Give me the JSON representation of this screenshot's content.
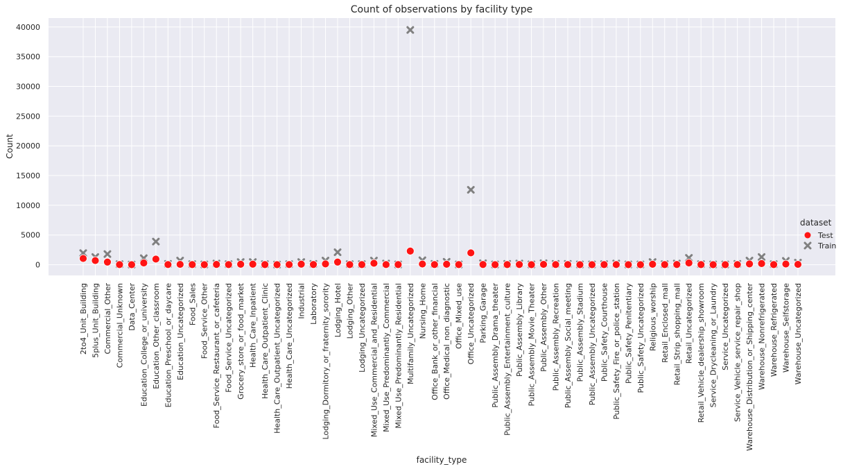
{
  "chart_data": {
    "type": "scatter",
    "title": "Count of observations by facility type",
    "xlabel": "facility_type",
    "ylabel": "Count",
    "ylim": [
      -1800,
      41500
    ],
    "yticks": [
      0,
      5000,
      10000,
      15000,
      20000,
      25000,
      30000,
      35000,
      40000
    ],
    "grid": true,
    "legend": {
      "title": "dataset",
      "placement": "right"
    },
    "categories": [
      "2to4_Unit_Building",
      "5plus_Unit_Building",
      "Commercial_Other",
      "Commercial_Unknown",
      "Data_Center",
      "Education_College_or_university",
      "Education_Other_classroom",
      "Education_Preschool_or_daycare",
      "Education_Uncategorized",
      "Food_Sales",
      "Food_Service_Other",
      "Food_Service_Restaurant_or_cafeteria",
      "Food_Service_Uncategorized",
      "Grocery_store_or_food_market",
      "Health_Care_Inpatient",
      "Health_Care_Outpatient_Clinic",
      "Health_Care_Outpatient_Uncategorized",
      "Health_Care_Uncategorized",
      "Industrial",
      "Laboratory",
      "Lodging_Dormitory_or_fraternity_sorority",
      "Lodging_Hotel",
      "Lodging_Other",
      "Lodging_Uncategorized",
      "Mixed_Use_Commercial_and_Residential",
      "Mixed_Use_Predominantly_Commercial",
      "Mixed_Use_Predominantly_Residential",
      "Multifamily_Uncategorized",
      "Nursing_Home",
      "Office_Bank_or_other_financial",
      "Office_Medical_non_diagnostic",
      "Office_Mixed_use",
      "Office_Uncategorized",
      "Parking_Garage",
      "Public_Assembly_Drama_theater",
      "Public_Assembly_Entertainment_culture",
      "Public_Assembly_Library",
      "Public_Assembly_Movie_Theater",
      "Public_Assembly_Other",
      "Public_Assembly_Recreation",
      "Public_Assembly_Social_meeting",
      "Public_Assembly_Stadium",
      "Public_Assembly_Uncategorized",
      "Public_Safety_Courthouse",
      "Public_Safety_Fire_or_police_station",
      "Public_Safety_Penitentiary",
      "Public_Safety_Uncategorized",
      "Religious_worship",
      "Retail_Enclosed_mall",
      "Retail_Strip_shopping_mall",
      "Retail_Uncategorized",
      "Retail_Vehicle_dealership_showroom",
      "Service_Drycleaning_or_Laundry",
      "Service_Uncategorized",
      "Service_Vehicle_service_repair_shop",
      "Warehouse_Distribution_or_Shipping_center",
      "Warehouse_Nonrefrigerated",
      "Warehouse_Refrigerated",
      "Warehouse_Selfstorage",
      "Warehouse_Uncategorized"
    ],
    "series": [
      {
        "name": "Test",
        "marker": "circle",
        "color": "#ff1414",
        "values": [
          1050,
          700,
          450,
          20,
          10,
          300,
          950,
          30,
          60,
          20,
          10,
          50,
          20,
          80,
          100,
          20,
          10,
          30,
          100,
          40,
          140,
          450,
          20,
          20,
          250,
          30,
          20,
          2300,
          120,
          30,
          80,
          20,
          2000,
          40,
          10,
          20,
          40,
          10,
          60,
          30,
          30,
          10,
          10,
          20,
          30,
          10,
          10,
          80,
          20,
          40,
          300,
          20,
          10,
          10,
          30,
          140,
          200,
          20,
          120,
          60
        ]
      },
      {
        "name": "Train",
        "marker": "x",
        "color": "#808080",
        "values": [
          1950,
          1300,
          1800,
          100,
          30,
          1100,
          3900,
          150,
          700,
          100,
          50,
          200,
          100,
          450,
          450,
          100,
          30,
          100,
          450,
          150,
          700,
          2100,
          100,
          100,
          700,
          200,
          50,
          39500,
          750,
          150,
          500,
          50,
          12600,
          250,
          50,
          150,
          200,
          50,
          250,
          150,
          150,
          50,
          50,
          100,
          200,
          50,
          50,
          450,
          100,
          200,
          1150,
          100,
          50,
          50,
          150,
          700,
          1300,
          100,
          650,
          350
        ]
      }
    ]
  }
}
